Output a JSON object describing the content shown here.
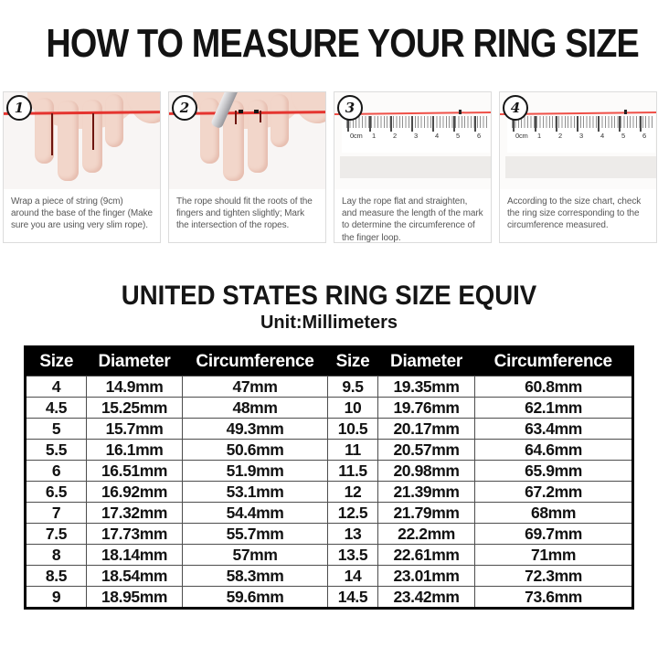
{
  "page": {
    "title": "HOW TO MEASURE YOUR RING SIZE"
  },
  "steps": [
    {
      "number": "1",
      "caption": "Wrap a piece of string (9cm) around the base of the finger (Make sure you are using very slim rope)."
    },
    {
      "number": "2",
      "caption": "The rope should fit the roots of the fingers and tighten slightly; Mark the intersection of the ropes."
    },
    {
      "number": "3",
      "caption": "Lay the rope flat and straighten, and measure the length of the mark to determine the circumference of the finger loop."
    },
    {
      "number": "4",
      "caption": "According to the size chart, check the ring size corresponding to the circumference measured."
    }
  ],
  "ruler_labels": [
    "0cm",
    "1",
    "2",
    "3",
    "4",
    "5",
    "6"
  ],
  "size_chart": {
    "title": "UNITED STATES RING SIZE EQUIV",
    "subtitle": "Unit:Millimeters",
    "headers": [
      "Size",
      "Diameter",
      "Circumference",
      "Size",
      "Diameter",
      "Circumference"
    ],
    "rows": [
      [
        "4",
        "14.9mm",
        "47mm",
        "9.5",
        "19.35mm",
        "60.8mm"
      ],
      [
        "4.5",
        "15.25mm",
        "48mm",
        "10",
        "19.76mm",
        "62.1mm"
      ],
      [
        "5",
        "15.7mm",
        "49.3mm",
        "10.5",
        "20.17mm",
        "63.4mm"
      ],
      [
        "5.5",
        "16.1mm",
        "50.6mm",
        "11",
        "20.57mm",
        "64.6mm"
      ],
      [
        "6",
        "16.51mm",
        "51.9mm",
        "11.5",
        "20.98mm",
        "65.9mm"
      ],
      [
        "6.5",
        "16.92mm",
        "53.1mm",
        "12",
        "21.39mm",
        "67.2mm"
      ],
      [
        "7",
        "17.32mm",
        "54.4mm",
        "12.5",
        "21.79mm",
        "68mm"
      ],
      [
        "7.5",
        "17.73mm",
        "55.7mm",
        "13",
        "22.2mm",
        "69.7mm"
      ],
      [
        "8",
        "18.14mm",
        "57mm",
        "13.5",
        "22.61mm",
        "71mm"
      ],
      [
        "8.5",
        "18.54mm",
        "58.3mm",
        "14",
        "23.01mm",
        "72.3mm"
      ],
      [
        "9",
        "18.95mm",
        "59.6mm",
        "14.5",
        "23.42mm",
        "73.6mm"
      ]
    ]
  },
  "colors": {
    "string_red": "#e5342f",
    "skin": "#f2d6ca",
    "header_bg": "#000000",
    "header_text": "#ffffff",
    "caption_text": "#575757"
  }
}
